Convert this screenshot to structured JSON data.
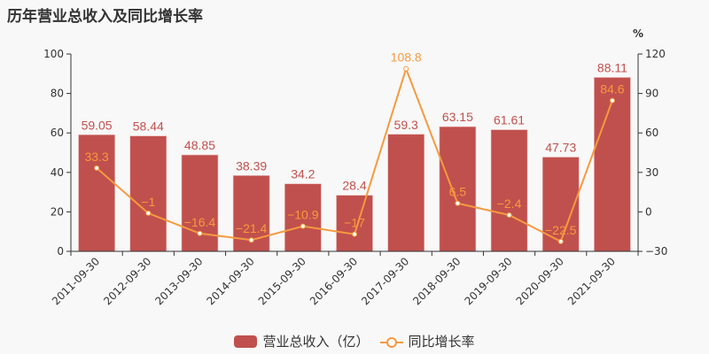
{
  "title": "历年营业总收入及同比增长率",
  "legend": {
    "bar_label": "营业总收入（亿）",
    "line_label": "同比增长率"
  },
  "right_axis_unit": "%",
  "colors": {
    "bar": "#c0504d",
    "line": "#f59a3f",
    "axis": "#333333",
    "background": "#f8f8f8"
  },
  "chart_data": {
    "type": "bar",
    "title": "历年营业总收入及同比增长率",
    "categories": [
      "2011-09-30",
      "2012-09-30",
      "2013-09-30",
      "2014-09-30",
      "2015-09-30",
      "2016-09-30",
      "2017-09-30",
      "2018-09-30",
      "2019-09-30",
      "2020-09-30",
      "2021-09-30"
    ],
    "series": [
      {
        "name": "营业总收入（亿）",
        "type": "bar",
        "axis": "left",
        "values": [
          59.05,
          58.44,
          48.85,
          38.39,
          34.2,
          28.4,
          59.3,
          63.15,
          61.61,
          47.73,
          88.11
        ]
      },
      {
        "name": "同比增长率",
        "type": "line",
        "axis": "right",
        "values": [
          33.3,
          -1,
          -16.4,
          -21.4,
          -10.9,
          -17,
          108.8,
          6.5,
          -2.4,
          -22.5,
          84.6
        ]
      }
    ],
    "xlabel": "",
    "ylabel": "",
    "ylabel_right": "%",
    "ylim": [
      0,
      100
    ],
    "ylim_right": [
      -30,
      120
    ],
    "yticks": [
      0,
      20,
      40,
      60,
      80,
      100
    ],
    "yticks_right": [
      -30,
      0,
      30,
      60,
      90,
      120
    ],
    "legend_position": "bottom",
    "grid": false
  }
}
